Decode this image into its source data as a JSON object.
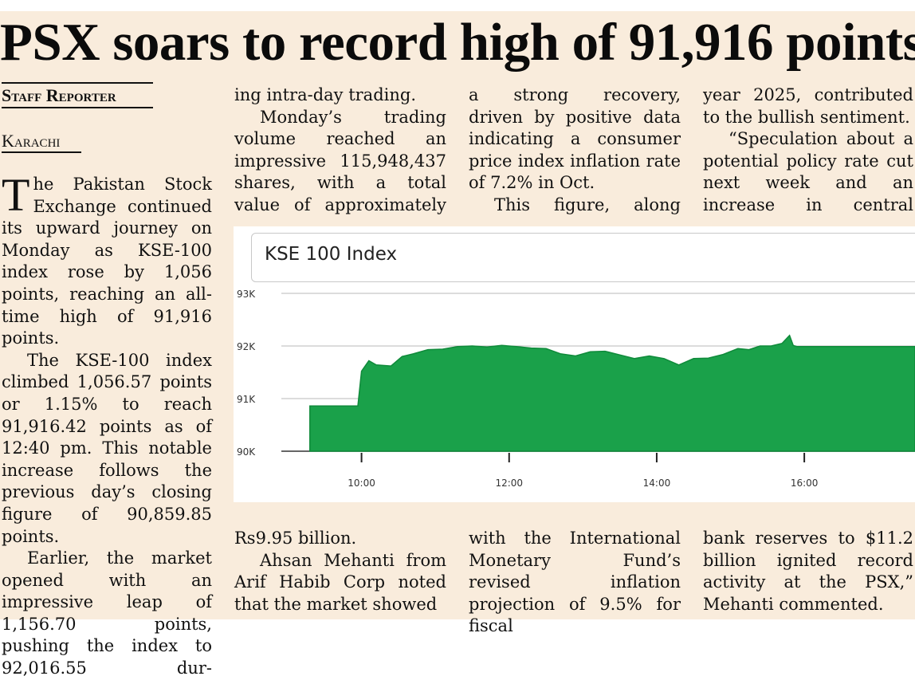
{
  "headline": "PSX soars to record high of 91,916 points",
  "byline": {
    "reporter": "Staff Reporter",
    "city": "Karachi"
  },
  "columns": {
    "col1": {
      "dropcap": "T",
      "p1": "he Pakistan Stock Exchange continued its upward journey on Monday as KSE-100 index rose by 1,056 points, reaching an all-time high of 91,916 points.",
      "p2": "The KSE-100 index climbed 1,056.57 points or 1.15% to reach 91,916.42 points as of 12:40 pm. This notable increase follows the previous day’s closing figure of 90,859.85 points.",
      "p3": "Earlier, the market opened with an impressive leap of 1,156.70 points, pushing the index to 92,016.55 dur-"
    },
    "col2_top": {
      "p1": "ing intra-day trading.",
      "p2": "Monday’s trading volume reached an impressive 115,948,437 shares, with a total value of approximately"
    },
    "col3_top": {
      "p1": "a strong recovery, driven by positive data indicating a consumer price index inflation rate of 7.2% in Oct.",
      "p2": "This figure, along"
    },
    "col4_top": {
      "p1": "year 2025, contributed to the bullish sentiment.",
      "p2": "“Speculation about a potential policy rate cut next week and an increase in central"
    },
    "col2_bottom": {
      "p1": "Rs9.95 billion.",
      "p2": "Ahsan Mehanti from Arif Habib Corp noted that the market showed"
    },
    "col3_bottom": {
      "p1": "with the International Monetary Fund’s revised inflation projection of 9.5% for fiscal"
    },
    "col4_bottom": {
      "p1": "bank reserves to $11.2 billion ignited record activity at the PSX,” Mehanti commented."
    }
  },
  "chart_data": {
    "type": "area",
    "title": "KSE 100 Index",
    "y_ticks": [
      "90K",
      "91K",
      "92K",
      "93K"
    ],
    "ylim": [
      90000,
      93000
    ],
    "x_ticks": [
      "10:00",
      "12:00",
      "14:00",
      "16:00"
    ],
    "color": "#1aa14a",
    "series": [
      {
        "x_hours": [
          9.3,
          9.35,
          9.6,
          9.95,
          10.0,
          10.1,
          10.2,
          10.4,
          10.55,
          10.7,
          10.9,
          11.1,
          11.3,
          11.5,
          11.7,
          11.9,
          12.1,
          12.3,
          12.5,
          12.7,
          12.9,
          13.1,
          13.3,
          13.5,
          13.7,
          13.9,
          14.1,
          14.3,
          14.5,
          14.7,
          14.9,
          15.1,
          15.25,
          15.4,
          15.55,
          15.7,
          15.8,
          15.85,
          15.9,
          16.0,
          16.5,
          17.0,
          17.5
        ],
        "y_values": [
          90860,
          90860,
          90860,
          90860,
          91520,
          91720,
          91640,
          91620,
          91800,
          91850,
          91930,
          91940,
          91990,
          92000,
          91980,
          92010,
          91990,
          91960,
          91950,
          91850,
          91810,
          91890,
          91900,
          91830,
          91760,
          91810,
          91760,
          91640,
          91760,
          91770,
          91840,
          91950,
          91930,
          92000,
          92000,
          92050,
          92200,
          92010,
          91990,
          91990,
          91990,
          91990,
          91990
        ]
      }
    ]
  }
}
